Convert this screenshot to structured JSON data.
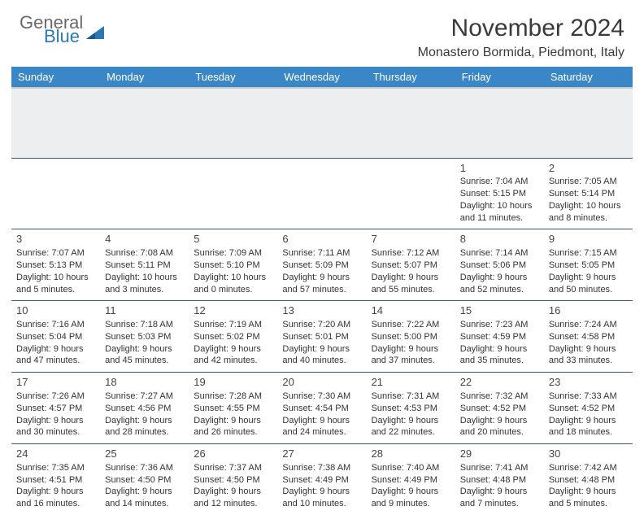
{
  "brand": {
    "part1": "General",
    "part2": "Blue"
  },
  "title": "November 2024",
  "location": "Monastero Bormida, Piedmont, Italy",
  "colors": {
    "header_bg": "#3a87c7",
    "header_text": "#ffffff",
    "brand_gray": "#6a6a6a",
    "brand_blue": "#2b78b3",
    "divider": "#3a5a7a",
    "spacer": "#eceef0",
    "body_text": "#333333"
  },
  "weekdays": [
    "Sunday",
    "Monday",
    "Tuesday",
    "Wednesday",
    "Thursday",
    "Friday",
    "Saturday"
  ],
  "weeks": [
    [
      null,
      null,
      null,
      null,
      null,
      {
        "n": "1",
        "sunrise": "Sunrise: 7:04 AM",
        "sunset": "Sunset: 5:15 PM",
        "daylight": "Daylight: 10 hours and 11 minutes."
      },
      {
        "n": "2",
        "sunrise": "Sunrise: 7:05 AM",
        "sunset": "Sunset: 5:14 PM",
        "daylight": "Daylight: 10 hours and 8 minutes."
      }
    ],
    [
      {
        "n": "3",
        "sunrise": "Sunrise: 7:07 AM",
        "sunset": "Sunset: 5:13 PM",
        "daylight": "Daylight: 10 hours and 5 minutes."
      },
      {
        "n": "4",
        "sunrise": "Sunrise: 7:08 AM",
        "sunset": "Sunset: 5:11 PM",
        "daylight": "Daylight: 10 hours and 3 minutes."
      },
      {
        "n": "5",
        "sunrise": "Sunrise: 7:09 AM",
        "sunset": "Sunset: 5:10 PM",
        "daylight": "Daylight: 10 hours and 0 minutes."
      },
      {
        "n": "6",
        "sunrise": "Sunrise: 7:11 AM",
        "sunset": "Sunset: 5:09 PM",
        "daylight": "Daylight: 9 hours and 57 minutes."
      },
      {
        "n": "7",
        "sunrise": "Sunrise: 7:12 AM",
        "sunset": "Sunset: 5:07 PM",
        "daylight": "Daylight: 9 hours and 55 minutes."
      },
      {
        "n": "8",
        "sunrise": "Sunrise: 7:14 AM",
        "sunset": "Sunset: 5:06 PM",
        "daylight": "Daylight: 9 hours and 52 minutes."
      },
      {
        "n": "9",
        "sunrise": "Sunrise: 7:15 AM",
        "sunset": "Sunset: 5:05 PM",
        "daylight": "Daylight: 9 hours and 50 minutes."
      }
    ],
    [
      {
        "n": "10",
        "sunrise": "Sunrise: 7:16 AM",
        "sunset": "Sunset: 5:04 PM",
        "daylight": "Daylight: 9 hours and 47 minutes."
      },
      {
        "n": "11",
        "sunrise": "Sunrise: 7:18 AM",
        "sunset": "Sunset: 5:03 PM",
        "daylight": "Daylight: 9 hours and 45 minutes."
      },
      {
        "n": "12",
        "sunrise": "Sunrise: 7:19 AM",
        "sunset": "Sunset: 5:02 PM",
        "daylight": "Daylight: 9 hours and 42 minutes."
      },
      {
        "n": "13",
        "sunrise": "Sunrise: 7:20 AM",
        "sunset": "Sunset: 5:01 PM",
        "daylight": "Daylight: 9 hours and 40 minutes."
      },
      {
        "n": "14",
        "sunrise": "Sunrise: 7:22 AM",
        "sunset": "Sunset: 5:00 PM",
        "daylight": "Daylight: 9 hours and 37 minutes."
      },
      {
        "n": "15",
        "sunrise": "Sunrise: 7:23 AM",
        "sunset": "Sunset: 4:59 PM",
        "daylight": "Daylight: 9 hours and 35 minutes."
      },
      {
        "n": "16",
        "sunrise": "Sunrise: 7:24 AM",
        "sunset": "Sunset: 4:58 PM",
        "daylight": "Daylight: 9 hours and 33 minutes."
      }
    ],
    [
      {
        "n": "17",
        "sunrise": "Sunrise: 7:26 AM",
        "sunset": "Sunset: 4:57 PM",
        "daylight": "Daylight: 9 hours and 30 minutes."
      },
      {
        "n": "18",
        "sunrise": "Sunrise: 7:27 AM",
        "sunset": "Sunset: 4:56 PM",
        "daylight": "Daylight: 9 hours and 28 minutes."
      },
      {
        "n": "19",
        "sunrise": "Sunrise: 7:28 AM",
        "sunset": "Sunset: 4:55 PM",
        "daylight": "Daylight: 9 hours and 26 minutes."
      },
      {
        "n": "20",
        "sunrise": "Sunrise: 7:30 AM",
        "sunset": "Sunset: 4:54 PM",
        "daylight": "Daylight: 9 hours and 24 minutes."
      },
      {
        "n": "21",
        "sunrise": "Sunrise: 7:31 AM",
        "sunset": "Sunset: 4:53 PM",
        "daylight": "Daylight: 9 hours and 22 minutes."
      },
      {
        "n": "22",
        "sunrise": "Sunrise: 7:32 AM",
        "sunset": "Sunset: 4:52 PM",
        "daylight": "Daylight: 9 hours and 20 minutes."
      },
      {
        "n": "23",
        "sunrise": "Sunrise: 7:33 AM",
        "sunset": "Sunset: 4:52 PM",
        "daylight": "Daylight: 9 hours and 18 minutes."
      }
    ],
    [
      {
        "n": "24",
        "sunrise": "Sunrise: 7:35 AM",
        "sunset": "Sunset: 4:51 PM",
        "daylight": "Daylight: 9 hours and 16 minutes."
      },
      {
        "n": "25",
        "sunrise": "Sunrise: 7:36 AM",
        "sunset": "Sunset: 4:50 PM",
        "daylight": "Daylight: 9 hours and 14 minutes."
      },
      {
        "n": "26",
        "sunrise": "Sunrise: 7:37 AM",
        "sunset": "Sunset: 4:50 PM",
        "daylight": "Daylight: 9 hours and 12 minutes."
      },
      {
        "n": "27",
        "sunrise": "Sunrise: 7:38 AM",
        "sunset": "Sunset: 4:49 PM",
        "daylight": "Daylight: 9 hours and 10 minutes."
      },
      {
        "n": "28",
        "sunrise": "Sunrise: 7:40 AM",
        "sunset": "Sunset: 4:49 PM",
        "daylight": "Daylight: 9 hours and 9 minutes."
      },
      {
        "n": "29",
        "sunrise": "Sunrise: 7:41 AM",
        "sunset": "Sunset: 4:48 PM",
        "daylight": "Daylight: 9 hours and 7 minutes."
      },
      {
        "n": "30",
        "sunrise": "Sunrise: 7:42 AM",
        "sunset": "Sunset: 4:48 PM",
        "daylight": "Daylight: 9 hours and 5 minutes."
      }
    ]
  ]
}
